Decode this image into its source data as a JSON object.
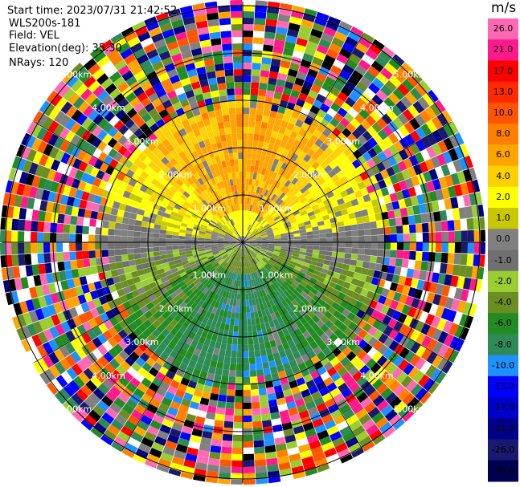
{
  "chart_data": {
    "type": "heatmap",
    "subtype": "ppi-radar-velocity",
    "header": {
      "start_time": "Start time: 2023/07/31 21:42:52",
      "site": "WLS200s-181",
      "field": "Field: VEL",
      "elevation": "Elevation(deg): 35.30",
      "nrays": "NRays: 120"
    },
    "range_rings": [
      {
        "range_km": 1.0,
        "label": "1.00km"
      },
      {
        "range_km": 2.0,
        "label": "2.00km"
      },
      {
        "range_km": 3.0,
        "label": "3.00km"
      },
      {
        "range_km": 4.0,
        "label": "4.00km"
      },
      {
        "range_km": 5.0,
        "label": "5.00km"
      }
    ],
    "spoke_angles_deg": [
      0,
      30,
      60,
      90,
      120,
      150,
      180,
      210,
      240,
      270,
      300,
      330
    ],
    "nrays": 120,
    "colorbar": {
      "unit": "m/s",
      "ticks": [
        "26.0",
        "21.0",
        "17.0",
        "13.0",
        "10.0",
        "8.0",
        "6.0",
        "4.0",
        "2.0",
        "1.0",
        "0.0",
        "-1.0",
        "-2.0",
        "-4.0",
        "-6.0",
        "-8.0",
        "-10.0",
        "-13.0",
        "-17.0",
        "-21.0",
        "-26.0",
        "-30.0"
      ],
      "colors": [
        "#ff69b4",
        "#ff1a8c",
        "#ff0000",
        "#ff2a00",
        "#ff5500",
        "#ff7f00",
        "#ffa500",
        "#ffd000",
        "#ffff00",
        "#c8c800",
        "#808080",
        "#707070",
        "#9acd32",
        "#6b8e23",
        "#228b22",
        "#2e8b57",
        "#1e90ff",
        "#0000ff",
        "#0000cd",
        "#00008b",
        "#191970",
        "#000050"
      ]
    },
    "approx_fields": {
      "inner_near_north": "5-10 m/s (orange)",
      "inner_near_south": "-2 to -8 m/s (green)",
      "noise_beyond_km": 3.0
    }
  }
}
